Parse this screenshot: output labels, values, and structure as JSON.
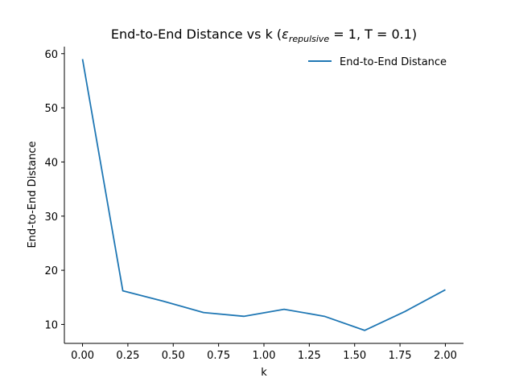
{
  "chart_data": {
    "type": "line",
    "title": {
      "prefix": "End-to-End Distance vs k (",
      "epsilon": "ε",
      "subscript": "repulsive",
      "suffix": " = 1, T = 0.1)"
    },
    "xlabel": "k",
    "ylabel": "End-to-End Distance",
    "xlim": [
      -0.1,
      2.1
    ],
    "ylim": [
      6.5,
      61.3
    ],
    "x_ticks": [
      0.0,
      0.25,
      0.5,
      0.75,
      1.0,
      1.25,
      1.5,
      1.75,
      2.0
    ],
    "x_tick_labels": [
      "0.00",
      "0.25",
      "0.50",
      "0.75",
      "1.00",
      "1.25",
      "1.50",
      "1.75",
      "2.00"
    ],
    "y_ticks": [
      10,
      20,
      30,
      40,
      50,
      60
    ],
    "y_tick_labels": [
      "10",
      "20",
      "30",
      "40",
      "50",
      "60"
    ],
    "grid": false,
    "legend_position": "top-right",
    "series": [
      {
        "name": "End-to-End Distance",
        "color": "#1f77b4",
        "x": [
          0.0,
          0.2222,
          0.4444,
          0.6667,
          0.8889,
          1.1111,
          1.3333,
          1.5556,
          1.7778,
          2.0
        ],
        "y": [
          59.0,
          16.2,
          14.3,
          12.2,
          11.5,
          12.8,
          11.5,
          8.9,
          12.4,
          16.4
        ]
      }
    ]
  }
}
